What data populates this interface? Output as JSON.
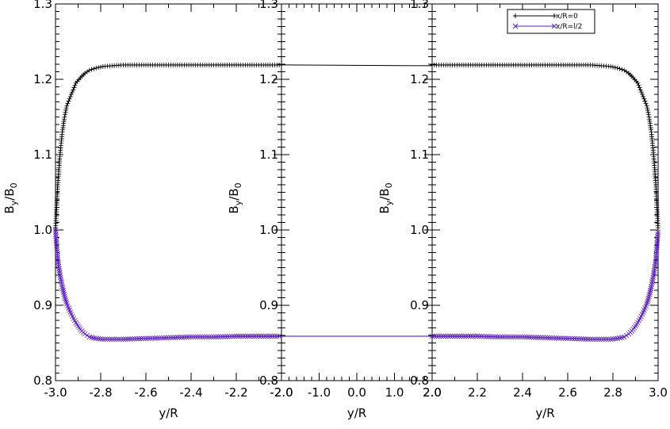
{
  "chart_data": [
    {
      "type": "line",
      "panel": "left",
      "xlabel": "y/R",
      "ylabel_main": "B",
      "ylabel_sub1": "y",
      "ylabel_mid": "/B",
      "ylabel_sub2": "0",
      "xlim": [
        -3.0,
        -2.0
      ],
      "ylim": [
        0.8,
        1.3
      ],
      "xticks": [
        "-3.0",
        "-2.8",
        "-2.6",
        "-2.4",
        "-2.2",
        "-2.0"
      ],
      "yticks": [
        "0.8",
        "0.9",
        "1.0",
        "1.1",
        "1.2",
        "1.3"
      ],
      "series": [
        {
          "name": "x/R=0",
          "color": "#000000",
          "marker": "plus",
          "x": [
            -3.0,
            -2.99,
            -2.98,
            -2.97,
            -2.96,
            -2.95,
            -2.93,
            -2.91,
            -2.89,
            -2.87,
            -2.85,
            -2.82,
            -2.79,
            -2.75,
            -2.7,
            -2.6,
            -2.5,
            -2.4,
            -2.3,
            -2.2,
            -2.1,
            -2.0
          ],
          "y": [
            1.0,
            1.06,
            1.1,
            1.13,
            1.15,
            1.165,
            1.18,
            1.195,
            1.202,
            1.208,
            1.212,
            1.215,
            1.217,
            1.218,
            1.219,
            1.219,
            1.219,
            1.219,
            1.219,
            1.219,
            1.219,
            1.219
          ]
        },
        {
          "name": "x/R=l/2",
          "color": "#5a1fbf",
          "marker": "x",
          "x": [
            -3.0,
            -2.99,
            -2.98,
            -2.97,
            -2.96,
            -2.95,
            -2.93,
            -2.91,
            -2.89,
            -2.87,
            -2.85,
            -2.82,
            -2.79,
            -2.75,
            -2.7,
            -2.6,
            -2.5,
            -2.4,
            -2.3,
            -2.2,
            -2.1,
            -2.0
          ],
          "y": [
            1.0,
            0.96,
            0.94,
            0.925,
            0.912,
            0.902,
            0.888,
            0.877,
            0.868,
            0.862,
            0.858,
            0.856,
            0.855,
            0.855,
            0.855,
            0.856,
            0.857,
            0.858,
            0.858,
            0.859,
            0.859,
            0.859
          ]
        }
      ]
    },
    {
      "type": "line",
      "panel": "middle",
      "xlabel": "y/R",
      "ylabel_main": "B",
      "ylabel_sub1": "y",
      "ylabel_mid": "/B",
      "ylabel_sub2": "0",
      "xlim": [
        -2.0,
        2.0
      ],
      "ylim": [
        0.8,
        1.3
      ],
      "xticks": [
        "-2.0",
        "-1.0",
        "0.0",
        "1.0",
        "2.0"
      ],
      "yticks": [
        "0.8",
        "0.9",
        "1.0",
        "1.1",
        "1.2",
        "1.3"
      ],
      "series": [
        {
          "name": "x/R=0",
          "color": "#000000",
          "x": [
            -2.0,
            2.0
          ],
          "y": [
            1.219,
            1.218
          ]
        },
        {
          "name": "x/R=l/2",
          "color": "#2a10d0",
          "x": [
            -2.0,
            2.0
          ],
          "y": [
            0.859,
            0.859
          ]
        }
      ]
    },
    {
      "type": "line",
      "panel": "right",
      "xlabel": "y/R",
      "ylabel_main": "B",
      "ylabel_sub1": "y",
      "ylabel_mid": "/B",
      "ylabel_sub2": "0",
      "xlim": [
        2.0,
        3.0
      ],
      "ylim": [
        0.8,
        1.3
      ],
      "xticks": [
        "2.0",
        "2.2",
        "2.4",
        "2.6",
        "2.8",
        "3.0"
      ],
      "yticks": [
        "0.8",
        "0.9",
        "1.0",
        "1.1",
        "1.2",
        "1.3"
      ],
      "legend": {
        "placement": "top-right",
        "entries": [
          "x/R=0",
          "x/R=l/2"
        ]
      },
      "series": [
        {
          "name": "x/R=0",
          "color": "#000000",
          "marker": "plus",
          "x": [
            2.0,
            2.1,
            2.2,
            2.3,
            2.4,
            2.5,
            2.6,
            2.7,
            2.75,
            2.79,
            2.82,
            2.85,
            2.87,
            2.89,
            2.91,
            2.93,
            2.95,
            2.96,
            2.97,
            2.98,
            2.99,
            3.0
          ],
          "y": [
            1.219,
            1.219,
            1.219,
            1.219,
            1.219,
            1.219,
            1.219,
            1.219,
            1.218,
            1.217,
            1.215,
            1.212,
            1.208,
            1.202,
            1.195,
            1.18,
            1.165,
            1.15,
            1.13,
            1.1,
            1.06,
            1.0
          ]
        },
        {
          "name": "x/R=l/2",
          "color": "#5a1fbf",
          "marker": "x",
          "x": [
            2.0,
            2.1,
            2.2,
            2.3,
            2.4,
            2.5,
            2.6,
            2.7,
            2.75,
            2.79,
            2.82,
            2.85,
            2.87,
            2.89,
            2.91,
            2.93,
            2.95,
            2.96,
            2.97,
            2.98,
            2.99,
            3.0
          ],
          "y": [
            0.859,
            0.859,
            0.859,
            0.858,
            0.858,
            0.857,
            0.856,
            0.855,
            0.855,
            0.855,
            0.856,
            0.858,
            0.862,
            0.868,
            0.877,
            0.888,
            0.902,
            0.912,
            0.925,
            0.94,
            0.96,
            1.0
          ]
        }
      ]
    }
  ]
}
